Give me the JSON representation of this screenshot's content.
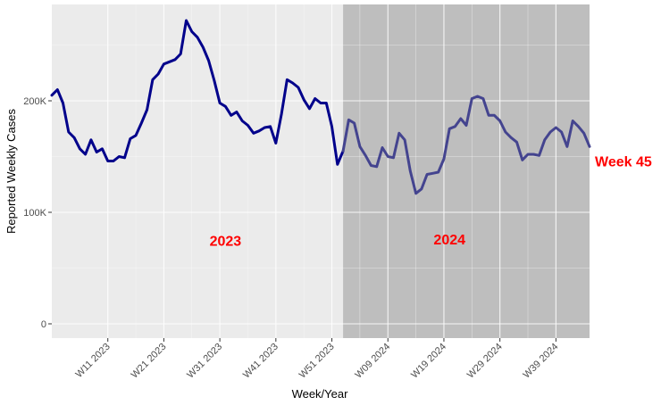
{
  "chart_data": {
    "type": "line",
    "xlabel": "Week/Year",
    "ylabel": "Reported Weekly Cases",
    "ylim": [
      0,
      300000
    ],
    "y_ticks": [
      {
        "value": 0,
        "label": "0"
      },
      {
        "value": 100000,
        "label": "100K"
      },
      {
        "value": 200000,
        "label": "200K"
      }
    ],
    "x_ticks": [
      {
        "index": 10,
        "label": "W11 2023"
      },
      {
        "index": 20,
        "label": "W21 2023"
      },
      {
        "index": 30,
        "label": "W31 2023"
      },
      {
        "index": 40,
        "label": "W41 2023"
      },
      {
        "index": 50,
        "label": "W51 2023"
      },
      {
        "index": 60,
        "label": "W09 2024"
      },
      {
        "index": 70,
        "label": "W19 2024"
      },
      {
        "index": 80,
        "label": "W29 2024"
      },
      {
        "index": 90,
        "label": "W39 2024"
      }
    ],
    "region_labels": [
      {
        "label": "2023",
        "index": 31,
        "value": 75000
      },
      {
        "label": "2024",
        "index": 71,
        "value": 76000
      }
    ],
    "end_label": "Week 45",
    "shaded_start_index": 52,
    "colors": {
      "panel_2023": "#ebebeb",
      "panel_2024": "#bebebe",
      "line_2023": "#00008b",
      "line_2024": "#44448f",
      "labels": "#ff0000"
    },
    "series": [
      {
        "values": [
          205000,
          210000,
          198000,
          172000,
          167000,
          157000,
          152000,
          165000,
          154000,
          157000,
          146000,
          146000,
          150000,
          149000,
          166000,
          169000,
          180000,
          192000,
          219000,
          224000,
          233000,
          235000,
          237000,
          242000,
          272000,
          262000,
          257000,
          248000,
          236000,
          218000,
          198000,
          195000,
          187000,
          190000,
          182000,
          178000,
          171000,
          173000,
          176000,
          177000,
          162000,
          188000,
          219000,
          216000,
          212000,
          201000,
          193000,
          202000,
          198000,
          198000,
          177000,
          143000,
          155000
        ]
      },
      {
        "values": [
          155000,
          183000,
          180000,
          159000,
          151000,
          142000,
          141000,
          158000,
          150000,
          149000,
          171000,
          165000,
          137000,
          117000,
          121000,
          134000,
          135000,
          136000,
          148000,
          175000,
          177000,
          184000,
          178000,
          202000,
          204000,
          202000,
          187000,
          187000,
          182000,
          172000,
          167000,
          163000,
          147000,
          152000,
          152000,
          151000,
          165000,
          172000,
          176000,
          172000,
          159000,
          182000,
          177000,
          171000,
          159000
        ]
      }
    ]
  }
}
